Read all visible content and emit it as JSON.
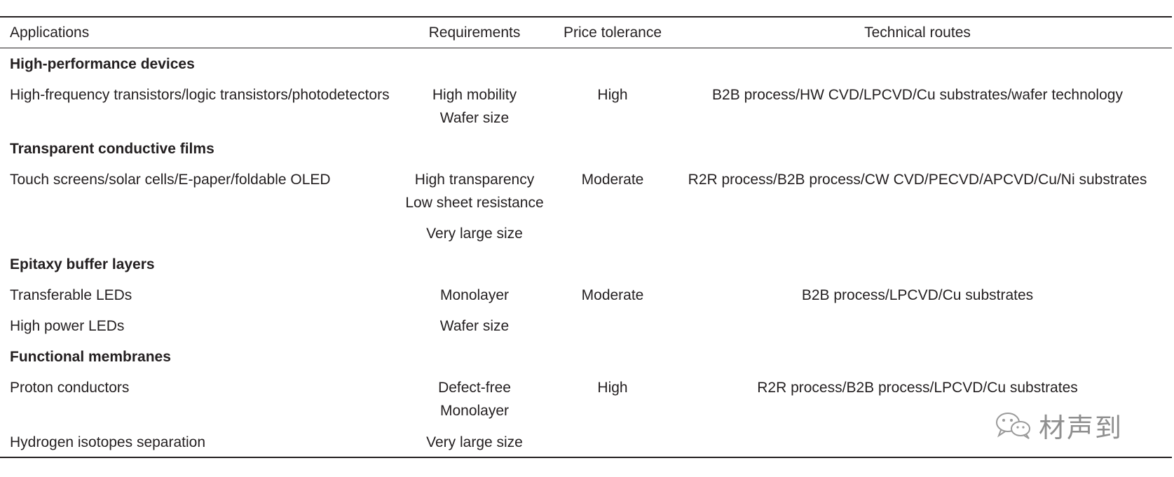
{
  "headers": {
    "applications": "Applications",
    "requirements": "Requirements",
    "price_tolerance": "Price tolerance",
    "technical_routes": "Technical routes"
  },
  "sections": [
    {
      "title": "High-performance devices",
      "app": "High-frequency transistors/logic transistors/photodetectors",
      "req": [
        "High mobility",
        "Wafer size"
      ],
      "price": "High",
      "tech": "B2B process/HW CVD/LPCVD/Cu substrates/wafer technology"
    },
    {
      "title": "Transparent conductive films",
      "app": "Touch screens/solar cells/E-paper/foldable OLED",
      "req": [
        "High transparency",
        "Low sheet resistance",
        "Very large size"
      ],
      "price": "Moderate",
      "tech": "R2R process/B2B process/CW CVD/PECVD/APCVD/Cu/Ni substrates"
    },
    {
      "title": "Epitaxy buffer layers",
      "app": [
        "Transferable LEDs",
        "High power LEDs"
      ],
      "req": [
        "Monolayer",
        "Wafer size"
      ],
      "price": "Moderate",
      "tech": "B2B process/LPCVD/Cu substrates"
    },
    {
      "title": "Functional membranes",
      "app": [
        "Proton conductors",
        "Hydrogen isotopes separation"
      ],
      "req": [
        "Defect-free",
        "Monolayer",
        "Very large size"
      ],
      "price": "High",
      "tech": "R2R process/B2B process/LPCVD/Cu substrates"
    }
  ],
  "watermark": {
    "icon": "wechat-icon",
    "text": "材声到"
  }
}
